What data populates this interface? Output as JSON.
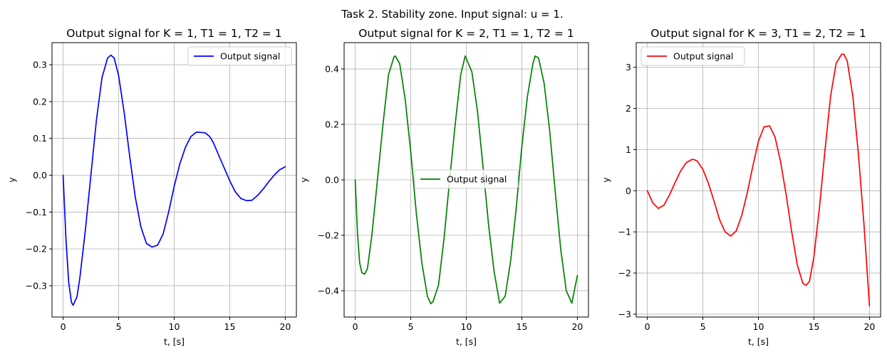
{
  "figure": {
    "suptitle": "Task 2. Stability zone. Input signal: u = 1."
  },
  "chart_data": [
    {
      "type": "line",
      "title": "Output signal for K = 1, T1 = 1, T2 = 1",
      "params": {
        "K": 1,
        "T1": 1,
        "T2": 1
      },
      "xlabel": "t, [s]",
      "ylabel": "y",
      "xlim": [
        -1,
        21
      ],
      "ylim": [
        -0.385,
        0.36
      ],
      "xticks": [
        0,
        5,
        10,
        15,
        20
      ],
      "yticks": [
        -0.3,
        -0.2,
        -0.1,
        0.0,
        0.1,
        0.2,
        0.3
      ],
      "ytick_labels": [
        "−0.3",
        "−0.2",
        "−0.1",
        "0.0",
        "0.1",
        "0.2",
        "0.3"
      ],
      "grid": true,
      "legend_position": "upper-right",
      "series": [
        {
          "name": "Output signal",
          "color": "#0000ff",
          "x": [
            0,
            0.25,
            0.5,
            0.75,
            0.9,
            1.25,
            1.5,
            2,
            2.5,
            3,
            3.5,
            4,
            4.3,
            4.6,
            5,
            5.5,
            6,
            6.5,
            7,
            7.5,
            8,
            8.5,
            9,
            9.5,
            10,
            10.5,
            11,
            11.5,
            12,
            12.5,
            12.8,
            13.2,
            13.5,
            14,
            14.5,
            15,
            15.5,
            16,
            16.5,
            17,
            17.5,
            18,
            18.5,
            19,
            19.5,
            20
          ],
          "y": [
            0.0,
            -0.17,
            -0.29,
            -0.345,
            -0.353,
            -0.33,
            -0.28,
            -0.15,
            0.0,
            0.15,
            0.265,
            0.318,
            0.326,
            0.318,
            0.27,
            0.17,
            0.05,
            -0.06,
            -0.14,
            -0.185,
            -0.195,
            -0.19,
            -0.16,
            -0.1,
            -0.03,
            0.03,
            0.075,
            0.105,
            0.117,
            0.116,
            0.115,
            0.105,
            0.09,
            0.055,
            0.02,
            -0.015,
            -0.045,
            -0.063,
            -0.069,
            -0.068,
            -0.055,
            -0.038,
            -0.018,
            0.0,
            0.015,
            0.023
          ]
        }
      ]
    },
    {
      "type": "line",
      "title": "Output signal for K = 2, T1 = 1, T2 = 1",
      "params": {
        "K": 2,
        "T1": 1,
        "T2": 1
      },
      "xlabel": "t, [s]",
      "ylabel": "y",
      "xlim": [
        -1,
        21
      ],
      "ylim": [
        -0.495,
        0.495
      ],
      "xticks": [
        0,
        5,
        10,
        15,
        20
      ],
      "yticks": [
        -0.4,
        -0.2,
        0.0,
        0.2,
        0.4
      ],
      "ytick_labels": [
        "−0.4",
        "−0.2",
        "0.0",
        "0.2",
        "0.4"
      ],
      "grid": true,
      "legend_position": "center",
      "series": [
        {
          "name": "Output signal",
          "color": "#008000",
          "x": [
            0,
            0.2,
            0.4,
            0.6,
            0.85,
            1.1,
            1.5,
            2,
            2.5,
            3,
            3.5,
            3.6,
            4,
            4.5,
            5,
            5.5,
            6,
            6.5,
            6.8,
            7,
            7.5,
            8,
            8.5,
            9,
            9.5,
            9.9,
            10.5,
            11,
            11.5,
            12,
            12.5,
            13,
            13.5,
            14,
            14.5,
            15,
            15.5,
            16,
            16.2,
            16.5,
            17,
            17.5,
            18,
            18.5,
            19,
            19.5,
            20
          ],
          "y": [
            0.0,
            -0.19,
            -0.3,
            -0.335,
            -0.34,
            -0.32,
            -0.2,
            0.0,
            0.2,
            0.38,
            0.445,
            0.447,
            0.42,
            0.29,
            0.1,
            -0.12,
            -0.3,
            -0.42,
            -0.447,
            -0.44,
            -0.38,
            -0.21,
            0.0,
            0.2,
            0.38,
            0.447,
            0.39,
            0.25,
            0.05,
            -0.16,
            -0.33,
            -0.445,
            -0.42,
            -0.29,
            -0.1,
            0.12,
            0.3,
            0.42,
            0.447,
            0.44,
            0.35,
            0.18,
            -0.04,
            -0.25,
            -0.4,
            -0.445,
            -0.345
          ]
        }
      ]
    },
    {
      "type": "line",
      "title": "Output signal for K = 3, T1 = 2, T2 = 1",
      "params": {
        "K": 3,
        "T1": 2,
        "T2": 1
      },
      "xlabel": "t, [s]",
      "ylabel": "y",
      "xlim": [
        -1,
        21
      ],
      "ylim": [
        -3.07,
        3.6
      ],
      "xticks": [
        0,
        5,
        10,
        15,
        20
      ],
      "yticks": [
        -3,
        -2,
        -1,
        0,
        1,
        2,
        3
      ],
      "ytick_labels": [
        "−3",
        "−2",
        "−1",
        "0",
        "1",
        "2",
        "3"
      ],
      "grid": true,
      "legend_position": "upper-left",
      "series": [
        {
          "name": "Output signal",
          "color": "#ff0000",
          "x": [
            0,
            0.5,
            1,
            1.5,
            2,
            2.5,
            3,
            3.5,
            4,
            4.2,
            4.5,
            5,
            5.5,
            6,
            6.5,
            7,
            7.5,
            8,
            8.5,
            9,
            9.5,
            10,
            10.5,
            11,
            11.5,
            12,
            12.5,
            13,
            13.5,
            14,
            14.3,
            14.6,
            15,
            15.5,
            16,
            16.5,
            17,
            17.5,
            17.7,
            18,
            18.5,
            19,
            19.5,
            20
          ],
          "y": [
            0.0,
            -0.3,
            -0.43,
            -0.35,
            -0.1,
            0.2,
            0.48,
            0.68,
            0.76,
            0.76,
            0.72,
            0.52,
            0.18,
            -0.25,
            -0.7,
            -1.0,
            -1.1,
            -0.98,
            -0.6,
            -0.05,
            0.6,
            1.2,
            1.55,
            1.58,
            1.3,
            0.7,
            -0.1,
            -1.0,
            -1.8,
            -2.25,
            -2.3,
            -2.2,
            -1.6,
            -0.4,
            1.0,
            2.3,
            3.1,
            3.32,
            3.32,
            3.15,
            2.3,
            0.9,
            -0.8,
            -2.8
          ]
        }
      ]
    }
  ]
}
